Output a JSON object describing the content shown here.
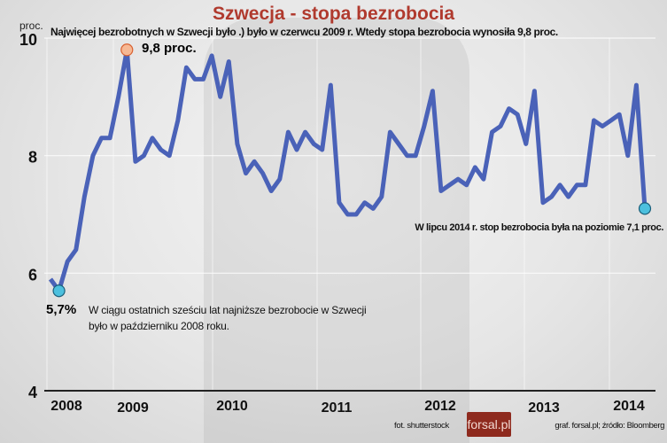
{
  "title": "Szwecja - stopa bezrobocia",
  "subtitle": "Najwięcej bezrobotnych w Szwecji było .) było w czerwcu 2009 r. Wtedy stopa bezrobocia wynosiła 9,8 proc.",
  "colors": {
    "title": "#b03a2e",
    "line": "#4a62b8",
    "max_marker": "#f6b894",
    "min_marker": "#4cc0de"
  },
  "chart_data": {
    "type": "line",
    "title": "Szwecja - stopa bezrobocia",
    "ylabel": "proc.",
    "ylim": [
      4,
      10
    ],
    "yticks": [
      "4",
      "6",
      "8",
      "10"
    ],
    "xticks": [
      "2008",
      "2009",
      "2010",
      "2011",
      "2012",
      "2013",
      "2014"
    ],
    "grid": true,
    "start": "2008-09",
    "end": "2014-07",
    "frequency": "monthly",
    "values": [
      5.9,
      5.7,
      6.2,
      6.4,
      7.3,
      8.0,
      8.3,
      8.3,
      9.0,
      9.8,
      7.9,
      8.0,
      8.3,
      8.1,
      8.0,
      8.6,
      9.5,
      9.3,
      9.3,
      9.7,
      9.0,
      9.6,
      8.2,
      7.7,
      7.9,
      7.7,
      7.4,
      7.6,
      8.4,
      8.1,
      8.4,
      8.2,
      8.1,
      9.2,
      7.2,
      7.0,
      7.0,
      7.2,
      7.1,
      7.3,
      8.4,
      8.2,
      8.0,
      8.0,
      8.5,
      9.1,
      7.4,
      7.5,
      7.6,
      7.5,
      7.8,
      7.6,
      8.4,
      8.5,
      8.8,
      8.7,
      8.2,
      9.1,
      7.2,
      7.3,
      7.5,
      7.3,
      7.5,
      7.5,
      8.6,
      8.5,
      8.6,
      8.7,
      8.0,
      9.2,
      7.1
    ],
    "annotations": {
      "max": "9,8 proc.",
      "min_value": "5,7%",
      "min_text_1": "W ciągu ostatnich sześciu lat najniższe bezrobocie w Szwecji",
      "min_text_2": "było w październiku 2008 roku.",
      "last": "W lipcu 2014 r. stop bezrobocia była na poziomie 7,1 proc."
    }
  },
  "footer": {
    "photo": "fot. shutterstock",
    "logo": "forsal.pl",
    "source": "graf. forsal.pl;  źródło: Bloomberg"
  }
}
